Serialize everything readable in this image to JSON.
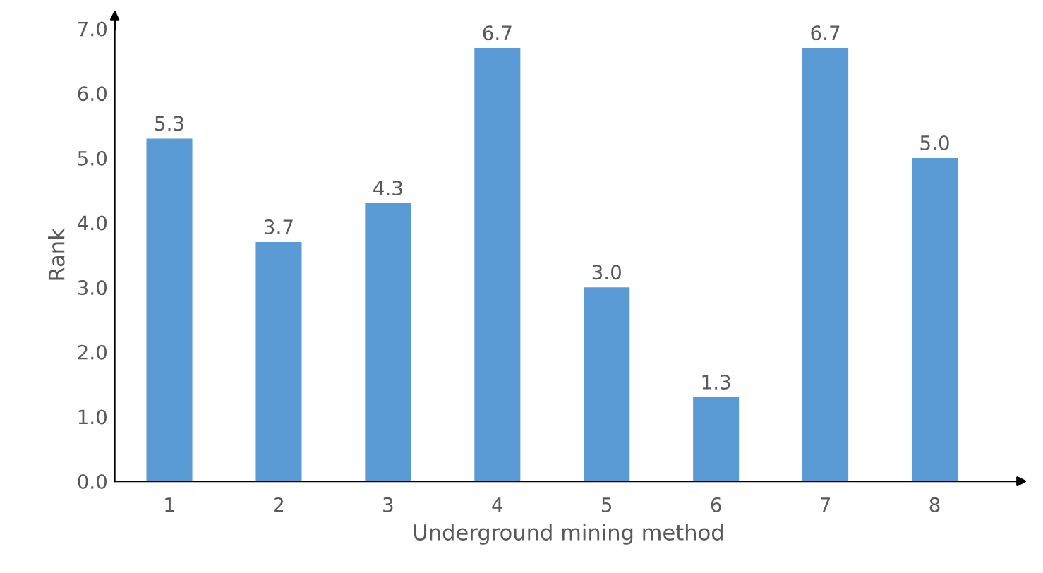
{
  "chart_data": {
    "type": "bar",
    "xlabel": "Underground mining method",
    "ylabel": "Rank",
    "categories": [
      "1",
      "2",
      "3",
      "4",
      "5",
      "6",
      "7",
      "8"
    ],
    "values": [
      5.3,
      3.7,
      4.3,
      6.7,
      3.0,
      1.3,
      6.7,
      5.0
    ],
    "value_labels": [
      "5.3",
      "3.7",
      "4.3",
      "6.7",
      "3.0",
      "1.3",
      "6.7",
      "5.0"
    ],
    "color": "#5b9bd5",
    "ylim": [
      0,
      7
    ],
    "yticks": [
      {
        "value": 0,
        "label": "0.0"
      },
      {
        "value": 1,
        "label": "1.0"
      },
      {
        "value": 2,
        "label": "2.0"
      },
      {
        "value": 3,
        "label": "3.0"
      },
      {
        "value": 4,
        "label": "4.0"
      },
      {
        "value": 5,
        "label": "5.0"
      },
      {
        "value": 6,
        "label": "6.0"
      },
      {
        "value": 7,
        "label": "7.0"
      }
    ],
    "grid": false,
    "legend": false
  }
}
